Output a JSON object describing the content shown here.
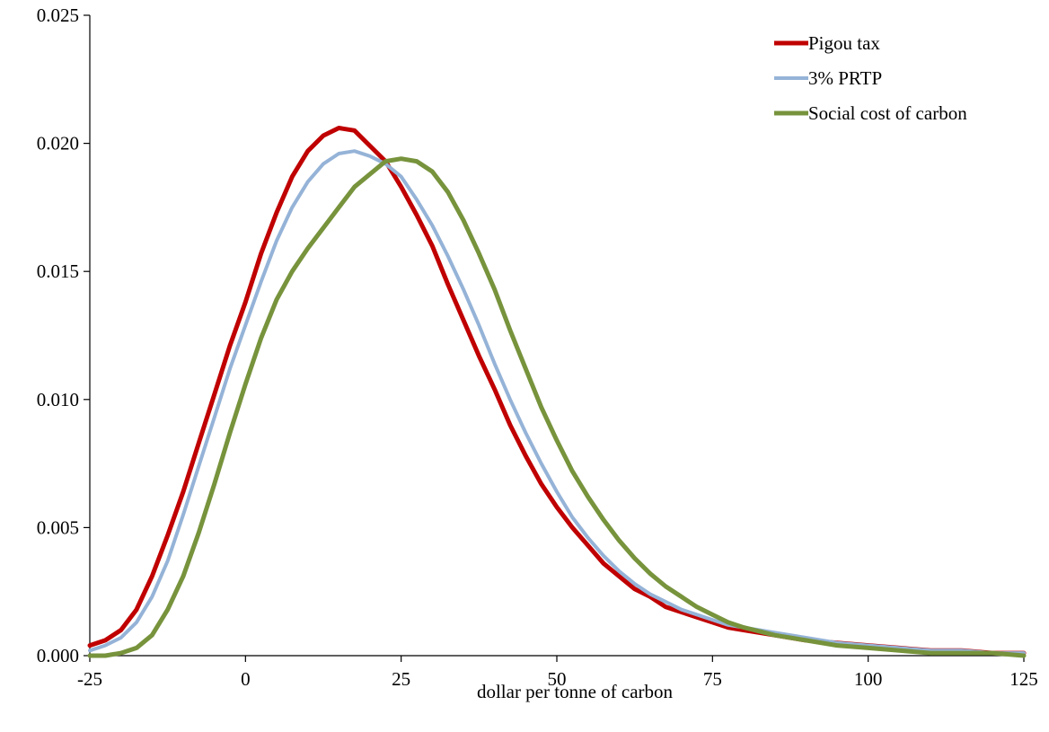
{
  "chart_data": {
    "type": "line",
    "title": "",
    "xlabel": "dollar per tonne of carbon",
    "ylabel": "",
    "xlim": [
      -25,
      125
    ],
    "ylim": [
      0,
      0.025
    ],
    "xticks": [
      "-25",
      "0",
      "25",
      "50",
      "75",
      "100",
      "125"
    ],
    "yticks": [
      "0.000",
      "0.005",
      "0.010",
      "0.015",
      "0.020",
      "0.025"
    ],
    "grid": false,
    "legend_position": "top-right",
    "series": [
      {
        "name": "Pigou tax",
        "color": "#c00000",
        "x": [
          -25,
          -22.5,
          -20,
          -17.5,
          -15,
          -12.5,
          -10,
          -7.5,
          -5,
          -2.5,
          0,
          2.5,
          5,
          7.5,
          10,
          12.5,
          15,
          17.5,
          20,
          22.5,
          25,
          27.5,
          30,
          32.5,
          35,
          37.5,
          40,
          42.5,
          45,
          47.5,
          50,
          52.5,
          55,
          57.5,
          60,
          62.5,
          65,
          67.5,
          70,
          72.5,
          75,
          77.5,
          80,
          85,
          90,
          95,
          100,
          105,
          110,
          115,
          120,
          125
        ],
        "y": [
          0.0004,
          0.0006,
          0.001,
          0.0018,
          0.0031,
          0.0047,
          0.0064,
          0.0083,
          0.0102,
          0.0121,
          0.0138,
          0.0157,
          0.0173,
          0.0187,
          0.0197,
          0.0203,
          0.0206,
          0.0205,
          0.0199,
          0.0193,
          0.0183,
          0.0172,
          0.016,
          0.0145,
          0.0131,
          0.0117,
          0.0104,
          0.009,
          0.0078,
          0.0067,
          0.0058,
          0.005,
          0.0043,
          0.0036,
          0.0031,
          0.0026,
          0.0023,
          0.0019,
          0.0017,
          0.0015,
          0.0013,
          0.0011,
          0.001,
          0.0008,
          0.0006,
          0.0005,
          0.0004,
          0.0003,
          0.0002,
          0.0002,
          0.0001,
          0.0001
        ]
      },
      {
        "name": "3% PRTP",
        "color": "#95b3d7",
        "x": [
          -25,
          -22.5,
          -20,
          -17.5,
          -15,
          -12.5,
          -10,
          -7.5,
          -5,
          -2.5,
          0,
          2.5,
          5,
          7.5,
          10,
          12.5,
          15,
          17.5,
          20,
          22.5,
          25,
          27.5,
          30,
          32.5,
          35,
          37.5,
          40,
          42.5,
          45,
          47.5,
          50,
          52.5,
          55,
          57.5,
          60,
          62.5,
          65,
          67.5,
          70,
          72.5,
          75,
          77.5,
          80,
          85,
          90,
          95,
          100,
          105,
          110,
          115,
          120,
          125
        ],
        "y": [
          0.0002,
          0.0004,
          0.0007,
          0.0013,
          0.0023,
          0.0037,
          0.0055,
          0.0074,
          0.0093,
          0.0112,
          0.0129,
          0.0146,
          0.0162,
          0.0175,
          0.0185,
          0.0192,
          0.0196,
          0.0197,
          0.0195,
          0.0192,
          0.0187,
          0.0178,
          0.0168,
          0.0156,
          0.0143,
          0.0129,
          0.0114,
          0.01,
          0.0087,
          0.0075,
          0.0064,
          0.0054,
          0.0046,
          0.0039,
          0.0033,
          0.0028,
          0.0024,
          0.0021,
          0.0018,
          0.0016,
          0.0014,
          0.0012,
          0.0011,
          0.0009,
          0.0007,
          0.0005,
          0.0004,
          0.0003,
          0.0002,
          0.0002,
          0.0001,
          0.0001
        ]
      },
      {
        "name": "Social cost of carbon",
        "color": "#77933c",
        "x": [
          -25,
          -22.5,
          -20,
          -17.5,
          -15,
          -12.5,
          -10,
          -7.5,
          -5,
          -2.5,
          0,
          2.5,
          5,
          7.5,
          10,
          12.5,
          15,
          17.5,
          20,
          22.5,
          25,
          27.5,
          30,
          32.5,
          35,
          37.5,
          40,
          42.5,
          45,
          47.5,
          50,
          52.5,
          55,
          57.5,
          60,
          62.5,
          65,
          67.5,
          70,
          72.5,
          75,
          77.5,
          80,
          85,
          90,
          95,
          100,
          105,
          110,
          115,
          120,
          125
        ],
        "y": [
          0,
          0,
          0.0001,
          0.0003,
          0.0008,
          0.0018,
          0.0031,
          0.0048,
          0.0067,
          0.0087,
          0.0106,
          0.0124,
          0.0139,
          0.015,
          0.0159,
          0.0167,
          0.0175,
          0.0183,
          0.0188,
          0.0193,
          0.0194,
          0.0193,
          0.0189,
          0.0181,
          0.017,
          0.0157,
          0.0143,
          0.0127,
          0.0112,
          0.0097,
          0.0084,
          0.0072,
          0.0062,
          0.0053,
          0.0045,
          0.0038,
          0.0032,
          0.0027,
          0.0023,
          0.0019,
          0.0016,
          0.0013,
          0.0011,
          0.0008,
          0.0006,
          0.0004,
          0.0003,
          0.0002,
          0.0001,
          0.0001,
          0.0001,
          0
        ]
      }
    ]
  }
}
